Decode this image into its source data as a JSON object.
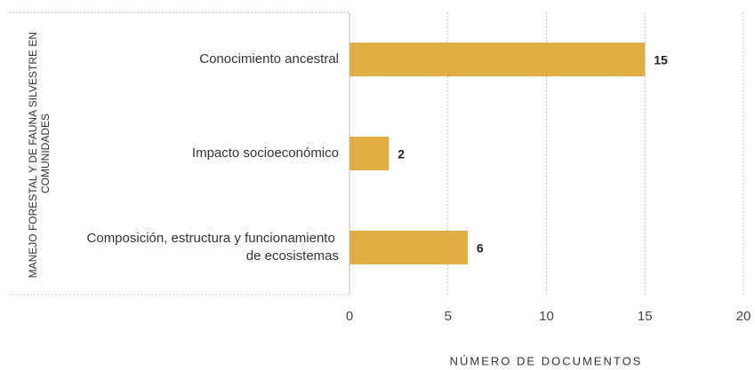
{
  "chart_data": {
    "type": "bar",
    "orientation": "horizontal",
    "ylabel": "MANEJO FORESTAL Y DE FAUNA SILVESTRE EN COMUNIDADES",
    "xlabel": "NÚMERO DE DOCUMENTOS",
    "categories": [
      "Conocimiento ancestral",
      "Impacto socioeconómico",
      "Composición, estructura y funcionamiento de ecosistemas"
    ],
    "values": [
      15,
      2,
      6
    ],
    "color": "#e0ae44",
    "xlim": [
      0,
      20
    ],
    "xticks": [
      0,
      5,
      10,
      15,
      20
    ],
    "grid": true
  }
}
